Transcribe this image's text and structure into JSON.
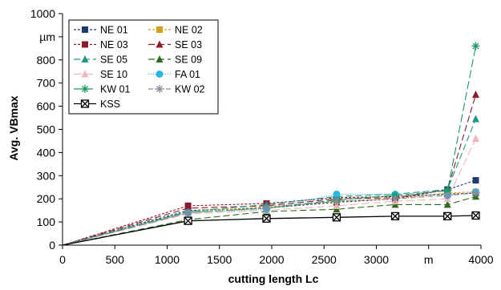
{
  "chart_data": {
    "type": "line",
    "title": "",
    "xlabel": "cutting length Lc",
    "ylabel": "Avg. VBmax",
    "x_unit_label": "m",
    "y_unit_label": "µm",
    "xlim": [
      0,
      4000
    ],
    "ylim": [
      0,
      1000
    ],
    "x_ticks": [
      {
        "value": 0,
        "label": "0"
      },
      {
        "value": 500,
        "label": "500"
      },
      {
        "value": 1000,
        "label": "1000"
      },
      {
        "value": 1500,
        "label": "1500"
      },
      {
        "value": 2000,
        "label": "2000"
      },
      {
        "value": 2500,
        "label": "2500"
      },
      {
        "value": 3000,
        "label": "3000"
      },
      {
        "value": 3500,
        "label": "m"
      },
      {
        "value": 4000,
        "label": "4000"
      }
    ],
    "y_ticks": [
      {
        "value": 0,
        "label": "0"
      },
      {
        "value": 100,
        "label": "100"
      },
      {
        "value": 200,
        "label": "200"
      },
      {
        "value": 300,
        "label": "300"
      },
      {
        "value": 400,
        "label": "400"
      },
      {
        "value": 500,
        "label": "500"
      },
      {
        "value": 600,
        "label": "600"
      },
      {
        "value": 700,
        "label": "700"
      },
      {
        "value": 800,
        "label": "800"
      },
      {
        "value": 900,
        "label": "µm"
      },
      {
        "value": 1000,
        "label": "1000"
      }
    ],
    "grid": false,
    "legend_position": "top-left",
    "x": [
      0,
      1200,
      1950,
      2620,
      3180,
      3680,
      3950
    ],
    "series": [
      {
        "name": "NE 01",
        "color": "#1f3b6e",
        "marker": "square",
        "dash": "3,2",
        "values": [
          0,
          150,
          160,
          185,
          200,
          240,
          280
        ]
      },
      {
        "name": "NE 02",
        "color": "#d4a017",
        "marker": "square",
        "dash": "3,2",
        "values": [
          0,
          145,
          165,
          190,
          200,
          225,
          230
        ]
      },
      {
        "name": "NE 03",
        "color": "#8b1a2b",
        "marker": "square",
        "dash": "3,2",
        "values": [
          0,
          170,
          180,
          205,
          210,
          220,
          225
        ]
      },
      {
        "name": "SE 03",
        "color": "#8b1a2b",
        "marker": "triangle",
        "dash": "8,4",
        "values": [
          0,
          160,
          170,
          200,
          205,
          240,
          650
        ]
      },
      {
        "name": "SE 05",
        "color": "#1a9a86",
        "marker": "triangle",
        "dash": "8,4",
        "values": [
          0,
          145,
          175,
          210,
          220,
          240,
          545
        ]
      },
      {
        "name": "SE 09",
        "color": "#2e6b1a",
        "marker": "triangle",
        "dash": "8,4",
        "values": [
          0,
          110,
          145,
          155,
          175,
          175,
          210
        ]
      },
      {
        "name": "SE 10",
        "color": "#f0b6b6",
        "marker": "triangle",
        "dash": "10,4",
        "values": [
          0,
          135,
          150,
          170,
          190,
          200,
          460
        ]
      },
      {
        "name": "FA 01",
        "color": "#29b6e8",
        "marker": "circle",
        "dash": "1,2",
        "values": [
          0,
          140,
          155,
          220,
          220,
          215,
          230
        ]
      },
      {
        "name": "KW 01",
        "color": "#1a9a60",
        "marker": "asterisk",
        "dash": "10,4",
        "values": [
          0,
          140,
          160,
          195,
          215,
          235,
          860
        ]
      },
      {
        "name": "KW 02",
        "color": "#8a8a99",
        "marker": "asterisk",
        "dash": "6,2,1,2",
        "values": [
          0,
          140,
          160,
          190,
          200,
          215,
          225
        ]
      },
      {
        "name": "KSS",
        "color": "#000000",
        "marker": "boxx",
        "dash": "",
        "values": [
          0,
          105,
          115,
          120,
          125,
          125,
          128
        ]
      }
    ]
  }
}
